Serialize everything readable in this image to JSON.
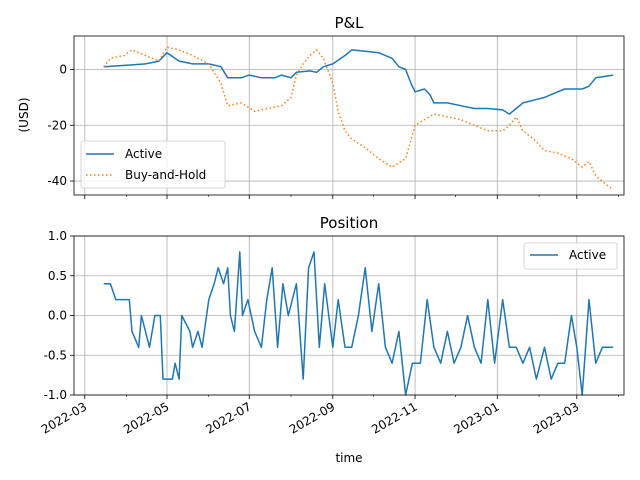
{
  "chart_data": [
    {
      "type": "line",
      "title": "P&L",
      "xlabel": "",
      "ylabel": "(USD)",
      "xlim": [
        "2022-02-21",
        "2023-04-05"
      ],
      "ylim": [
        -45,
        12
      ],
      "yticks": [
        0,
        -20,
        -40
      ],
      "grid": true,
      "legend": "lower-left",
      "series": [
        {
          "name": "Active",
          "color": "#1f77b4",
          "style": "solid",
          "points": [
            [
              "2022-03-15",
              1
            ],
            [
              "2022-04-01",
              1.5
            ],
            [
              "2022-04-15",
              2
            ],
            [
              "2022-04-25",
              3
            ],
            [
              "2022-05-01",
              6
            ],
            [
              "2022-05-10",
              3
            ],
            [
              "2022-05-20",
              2
            ],
            [
              "2022-06-01",
              2
            ],
            [
              "2022-06-10",
              1
            ],
            [
              "2022-06-15",
              -3
            ],
            [
              "2022-06-25",
              -3
            ],
            [
              "2022-07-01",
              -2
            ],
            [
              "2022-07-10",
              -3
            ],
            [
              "2022-07-20",
              -3
            ],
            [
              "2022-07-25",
              -2
            ],
            [
              "2022-08-01",
              -3
            ],
            [
              "2022-08-05",
              -1
            ],
            [
              "2022-08-15",
              -0.5
            ],
            [
              "2022-08-20",
              -1
            ],
            [
              "2022-08-25",
              1
            ],
            [
              "2022-09-01",
              2
            ],
            [
              "2022-09-10",
              5
            ],
            [
              "2022-09-15",
              7
            ],
            [
              "2022-09-25",
              6.5
            ],
            [
              "2022-10-05",
              6
            ],
            [
              "2022-10-15",
              4
            ],
            [
              "2022-10-20",
              1
            ],
            [
              "2022-10-25",
              0
            ],
            [
              "2022-10-29",
              -5
            ],
            [
              "2022-11-01",
              -8
            ],
            [
              "2022-11-08",
              -7
            ],
            [
              "2022-11-12",
              -9
            ],
            [
              "2022-11-15",
              -12
            ],
            [
              "2022-11-25",
              -12
            ],
            [
              "2022-12-05",
              -13
            ],
            [
              "2022-12-15",
              -14
            ],
            [
              "2022-12-25",
              -14
            ],
            [
              "2023-01-05",
              -14.5
            ],
            [
              "2023-01-10",
              -16
            ],
            [
              "2023-01-15",
              -14
            ],
            [
              "2023-01-20",
              -12
            ],
            [
              "2023-01-28",
              -11
            ],
            [
              "2023-02-05",
              -10
            ],
            [
              "2023-02-10",
              -9
            ],
            [
              "2023-02-20",
              -7
            ],
            [
              "2023-03-05",
              -7
            ],
            [
              "2023-03-10",
              -6
            ],
            [
              "2023-03-15",
              -3
            ],
            [
              "2023-03-22",
              -2.5
            ],
            [
              "2023-03-28",
              -2
            ]
          ]
        },
        {
          "name": "Buy-and-Hold",
          "color": "#ff7f0e",
          "style": "dotted",
          "points": [
            [
              "2022-03-15",
              1
            ],
            [
              "2022-03-20",
              4
            ],
            [
              "2022-03-30",
              5
            ],
            [
              "2022-04-05",
              7
            ],
            [
              "2022-04-15",
              5
            ],
            [
              "2022-04-25",
              3
            ],
            [
              "2022-05-01",
              8
            ],
            [
              "2022-05-10",
              7
            ],
            [
              "2022-05-20",
              5
            ],
            [
              "2022-06-01",
              2
            ],
            [
              "2022-06-10",
              -5
            ],
            [
              "2022-06-15",
              -13
            ],
            [
              "2022-06-25",
              -12
            ],
            [
              "2022-07-05",
              -15
            ],
            [
              "2022-07-15",
              -14
            ],
            [
              "2022-07-25",
              -13
            ],
            [
              "2022-08-01",
              -10
            ],
            [
              "2022-08-05",
              -2
            ],
            [
              "2022-08-10",
              2
            ],
            [
              "2022-08-15",
              5
            ],
            [
              "2022-08-20",
              7
            ],
            [
              "2022-08-25",
              4
            ],
            [
              "2022-09-01",
              -5
            ],
            [
              "2022-09-05",
              -15
            ],
            [
              "2022-09-10",
              -22
            ],
            [
              "2022-09-15",
              -25
            ],
            [
              "2022-09-25",
              -28
            ],
            [
              "2022-10-05",
              -32
            ],
            [
              "2022-10-15",
              -35
            ],
            [
              "2022-10-25",
              -32
            ],
            [
              "2022-11-01",
              -20
            ],
            [
              "2022-11-08",
              -18
            ],
            [
              "2022-11-15",
              -16
            ],
            [
              "2022-11-25",
              -17
            ],
            [
              "2022-12-05",
              -18
            ],
            [
              "2022-12-15",
              -20
            ],
            [
              "2022-12-25",
              -22
            ],
            [
              "2023-01-05",
              -22
            ],
            [
              "2023-01-10",
              -20
            ],
            [
              "2023-01-15",
              -17
            ],
            [
              "2023-01-20",
              -22
            ],
            [
              "2023-01-28",
              -25
            ],
            [
              "2023-02-05",
              -29
            ],
            [
              "2023-02-15",
              -30
            ],
            [
              "2023-02-25",
              -32
            ],
            [
              "2023-03-05",
              -35
            ],
            [
              "2023-03-10",
              -33
            ],
            [
              "2023-03-15",
              -38
            ],
            [
              "2023-03-22",
              -41
            ],
            [
              "2023-03-28",
              -43
            ]
          ]
        }
      ]
    },
    {
      "type": "line",
      "title": "Position",
      "xlabel": "time",
      "ylabel": "",
      "xlim": [
        "2022-02-21",
        "2023-04-05"
      ],
      "ylim": [
        -1.0,
        1.0
      ],
      "yticks": [
        1.0,
        0.5,
        0.0,
        -0.5,
        -1.0
      ],
      "xticks": [
        "2022-03",
        "2022-05",
        "2022-07",
        "2022-09",
        "2022-11",
        "2023-01",
        "2023-03"
      ],
      "grid": true,
      "legend": "upper-right",
      "series": [
        {
          "name": "Active",
          "color": "#1f77b4",
          "style": "solid",
          "points": [
            [
              "2022-03-15",
              0.4
            ],
            [
              "2022-03-20",
              0.4
            ],
            [
              "2022-03-24",
              0.2
            ],
            [
              "2022-04-03",
              0.2
            ],
            [
              "2022-04-05",
              -0.2
            ],
            [
              "2022-04-10",
              -0.4
            ],
            [
              "2022-04-12",
              0.0
            ],
            [
              "2022-04-18",
              -0.4
            ],
            [
              "2022-04-22",
              0.0
            ],
            [
              "2022-04-26",
              0.0
            ],
            [
              "2022-04-28",
              -0.8
            ],
            [
              "2022-05-05",
              -0.8
            ],
            [
              "2022-05-07",
              -0.6
            ],
            [
              "2022-05-10",
              -0.8
            ],
            [
              "2022-05-12",
              0.0
            ],
            [
              "2022-05-18",
              -0.2
            ],
            [
              "2022-05-20",
              -0.4
            ],
            [
              "2022-05-24",
              -0.2
            ],
            [
              "2022-05-27",
              -0.4
            ],
            [
              "2022-06-01",
              0.2
            ],
            [
              "2022-06-05",
              0.4
            ],
            [
              "2022-06-08",
              0.6
            ],
            [
              "2022-06-12",
              0.4
            ],
            [
              "2022-06-15",
              0.6
            ],
            [
              "2022-06-17",
              0.0
            ],
            [
              "2022-06-20",
              -0.2
            ],
            [
              "2022-06-24",
              0.8
            ],
            [
              "2022-06-26",
              0.0
            ],
            [
              "2022-06-30",
              0.2
            ],
            [
              "2022-07-05",
              -0.2
            ],
            [
              "2022-07-10",
              -0.4
            ],
            [
              "2022-07-14",
              0.2
            ],
            [
              "2022-07-18",
              0.6
            ],
            [
              "2022-07-22",
              -0.4
            ],
            [
              "2022-07-26",
              0.4
            ],
            [
              "2022-07-30",
              0.0
            ],
            [
              "2022-08-05",
              0.4
            ],
            [
              "2022-08-10",
              -0.8
            ],
            [
              "2022-08-14",
              0.6
            ],
            [
              "2022-08-18",
              0.8
            ],
            [
              "2022-08-22",
              -0.4
            ],
            [
              "2022-08-26",
              0.4
            ],
            [
              "2022-09-01",
              -0.4
            ],
            [
              "2022-09-05",
              0.2
            ],
            [
              "2022-09-10",
              -0.4
            ],
            [
              "2022-09-15",
              -0.4
            ],
            [
              "2022-09-20",
              0.0
            ],
            [
              "2022-09-25",
              0.6
            ],
            [
              "2022-09-30",
              -0.2
            ],
            [
              "2022-10-05",
              0.4
            ],
            [
              "2022-10-10",
              -0.4
            ],
            [
              "2022-10-15",
              -0.6
            ],
            [
              "2022-10-20",
              -0.2
            ],
            [
              "2022-10-25",
              -1.0
            ],
            [
              "2022-10-30",
              -0.6
            ],
            [
              "2022-11-05",
              -0.6
            ],
            [
              "2022-11-10",
              0.2
            ],
            [
              "2022-11-15",
              -0.4
            ],
            [
              "2022-11-20",
              -0.6
            ],
            [
              "2022-11-25",
              -0.2
            ],
            [
              "2022-11-30",
              -0.6
            ],
            [
              "2022-12-05",
              -0.4
            ],
            [
              "2022-12-10",
              0.0
            ],
            [
              "2022-12-15",
              -0.4
            ],
            [
              "2022-12-20",
              -0.6
            ],
            [
              "2022-12-25",
              0.2
            ],
            [
              "2022-12-30",
              -0.6
            ],
            [
              "2023-01-05",
              0.2
            ],
            [
              "2023-01-10",
              -0.4
            ],
            [
              "2023-01-15",
              -0.4
            ],
            [
              "2023-01-20",
              -0.6
            ],
            [
              "2023-01-25",
              -0.4
            ],
            [
              "2023-01-30",
              -0.8
            ],
            [
              "2023-02-05",
              -0.4
            ],
            [
              "2023-02-10",
              -0.8
            ],
            [
              "2023-02-15",
              -0.6
            ],
            [
              "2023-02-20",
              -0.6
            ],
            [
              "2023-02-25",
              0.0
            ],
            [
              "2023-03-01",
              -0.4
            ],
            [
              "2023-03-05",
              -1.0
            ],
            [
              "2023-03-10",
              0.2
            ],
            [
              "2023-03-15",
              -0.6
            ],
            [
              "2023-03-20",
              -0.4
            ],
            [
              "2023-03-28",
              -0.4
            ]
          ]
        }
      ]
    }
  ]
}
